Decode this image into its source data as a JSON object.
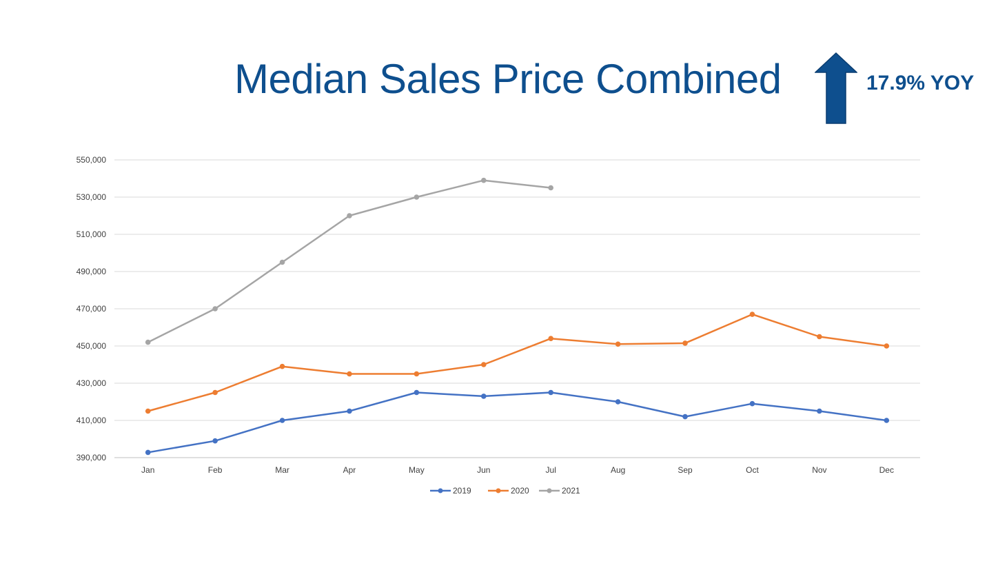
{
  "slide": {
    "title": "Median Sales Price Combined",
    "badge": {
      "label": "17.9% YOY",
      "icon": "up-arrow-icon",
      "color": "#0e4f8e"
    }
  },
  "chart_data": {
    "type": "line",
    "categories": [
      "Jan",
      "Feb",
      "Mar",
      "Apr",
      "May",
      "Jun",
      "Jul",
      "Aug",
      "Sep",
      "Oct",
      "Nov",
      "Dec"
    ],
    "ylim": [
      390000,
      550000
    ],
    "yticks": [
      390000,
      410000,
      430000,
      450000,
      470000,
      490000,
      510000,
      530000,
      550000
    ],
    "ytick_labels": [
      "390,000",
      "410,000",
      "430,000",
      "450,000",
      "470,000",
      "490,000",
      "510,000",
      "530,000",
      "550,000"
    ],
    "grid": true,
    "legend_position": "bottom",
    "series": [
      {
        "name": "2019",
        "color": "#4472c4",
        "values": [
          392800,
          399000,
          410000,
          415000,
          425000,
          423000,
          425000,
          420000,
          412000,
          419000,
          415000,
          410000
        ]
      },
      {
        "name": "2020",
        "color": "#ed7d31",
        "values": [
          415000,
          425000,
          439000,
          435000,
          435000,
          440000,
          454000,
          451000,
          451500,
          467000,
          455000,
          450000
        ]
      },
      {
        "name": "2021",
        "color": "#a5a5a5",
        "values": [
          452000,
          470000,
          495000,
          520000,
          530000,
          539000,
          535000,
          null,
          null,
          null,
          null,
          null
        ]
      }
    ]
  }
}
